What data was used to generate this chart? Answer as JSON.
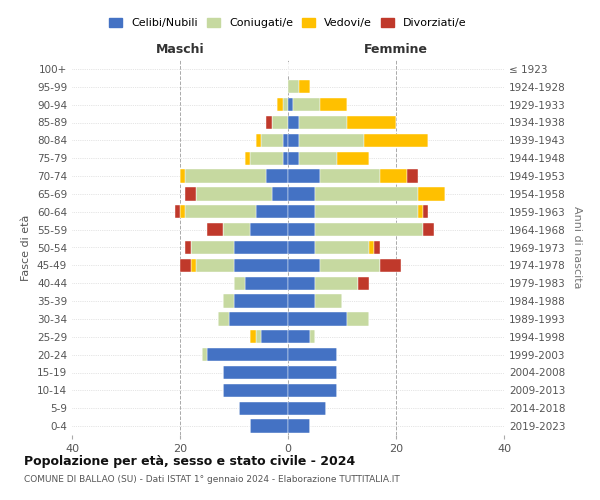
{
  "age_groups": [
    "0-4",
    "5-9",
    "10-14",
    "15-19",
    "20-24",
    "25-29",
    "30-34",
    "35-39",
    "40-44",
    "45-49",
    "50-54",
    "55-59",
    "60-64",
    "65-69",
    "70-74",
    "75-79",
    "80-84",
    "85-89",
    "90-94",
    "95-99",
    "100+"
  ],
  "birth_years": [
    "2019-2023",
    "2014-2018",
    "2009-2013",
    "2004-2008",
    "1999-2003",
    "1994-1998",
    "1989-1993",
    "1984-1988",
    "1979-1983",
    "1974-1978",
    "1969-1973",
    "1964-1968",
    "1959-1963",
    "1954-1958",
    "1949-1953",
    "1944-1948",
    "1939-1943",
    "1934-1938",
    "1929-1933",
    "1924-1928",
    "≤ 1923"
  ],
  "colors": {
    "celibe": "#4472c4",
    "coniugato": "#c6d9a0",
    "vedovo": "#ffc000",
    "divorziato": "#c0392b"
  },
  "maschi": {
    "celibe": [
      7,
      9,
      12,
      12,
      15,
      5,
      11,
      10,
      8,
      10,
      10,
      7,
      6,
      3,
      4,
      1,
      1,
      0,
      0,
      0,
      0
    ],
    "coniugato": [
      0,
      0,
      0,
      0,
      1,
      1,
      2,
      2,
      2,
      7,
      8,
      5,
      13,
      14,
      15,
      6,
      4,
      3,
      1,
      0,
      0
    ],
    "vedovo": [
      0,
      0,
      0,
      0,
      0,
      1,
      0,
      0,
      0,
      1,
      0,
      0,
      1,
      0,
      1,
      1,
      1,
      0,
      1,
      0,
      0
    ],
    "divorziato": [
      0,
      0,
      0,
      0,
      0,
      0,
      0,
      0,
      0,
      2,
      1,
      3,
      1,
      2,
      0,
      0,
      0,
      1,
      0,
      0,
      0
    ]
  },
  "femmine": {
    "celibe": [
      4,
      7,
      9,
      9,
      9,
      4,
      11,
      5,
      5,
      6,
      5,
      5,
      5,
      5,
      6,
      2,
      2,
      2,
      1,
      0,
      0
    ],
    "coniugato": [
      0,
      0,
      0,
      0,
      0,
      1,
      4,
      5,
      8,
      11,
      10,
      20,
      19,
      19,
      11,
      7,
      12,
      9,
      5,
      2,
      0
    ],
    "vedovo": [
      0,
      0,
      0,
      0,
      0,
      0,
      0,
      0,
      0,
      0,
      1,
      0,
      1,
      5,
      5,
      6,
      12,
      9,
      5,
      2,
      0
    ],
    "divorziato": [
      0,
      0,
      0,
      0,
      0,
      0,
      0,
      0,
      2,
      4,
      1,
      2,
      1,
      0,
      2,
      0,
      0,
      0,
      0,
      0,
      0
    ]
  },
  "xlim": 40,
  "title": "Popolazione per età, sesso e stato civile - 2024",
  "subtitle": "COMUNE DI BALLAO (SU) - Dati ISTAT 1° gennaio 2024 - Elaborazione TUTTITALIA.IT",
  "xlabel_left": "Maschi",
  "xlabel_right": "Femmine",
  "ylabel": "Fasce di età",
  "ylabel_right": "Anni di nascita",
  "legend_labels": [
    "Celibi/Nubili",
    "Coniugati/e",
    "Vedovi/e",
    "Divorziati/e"
  ],
  "background_color": "#ffffff"
}
